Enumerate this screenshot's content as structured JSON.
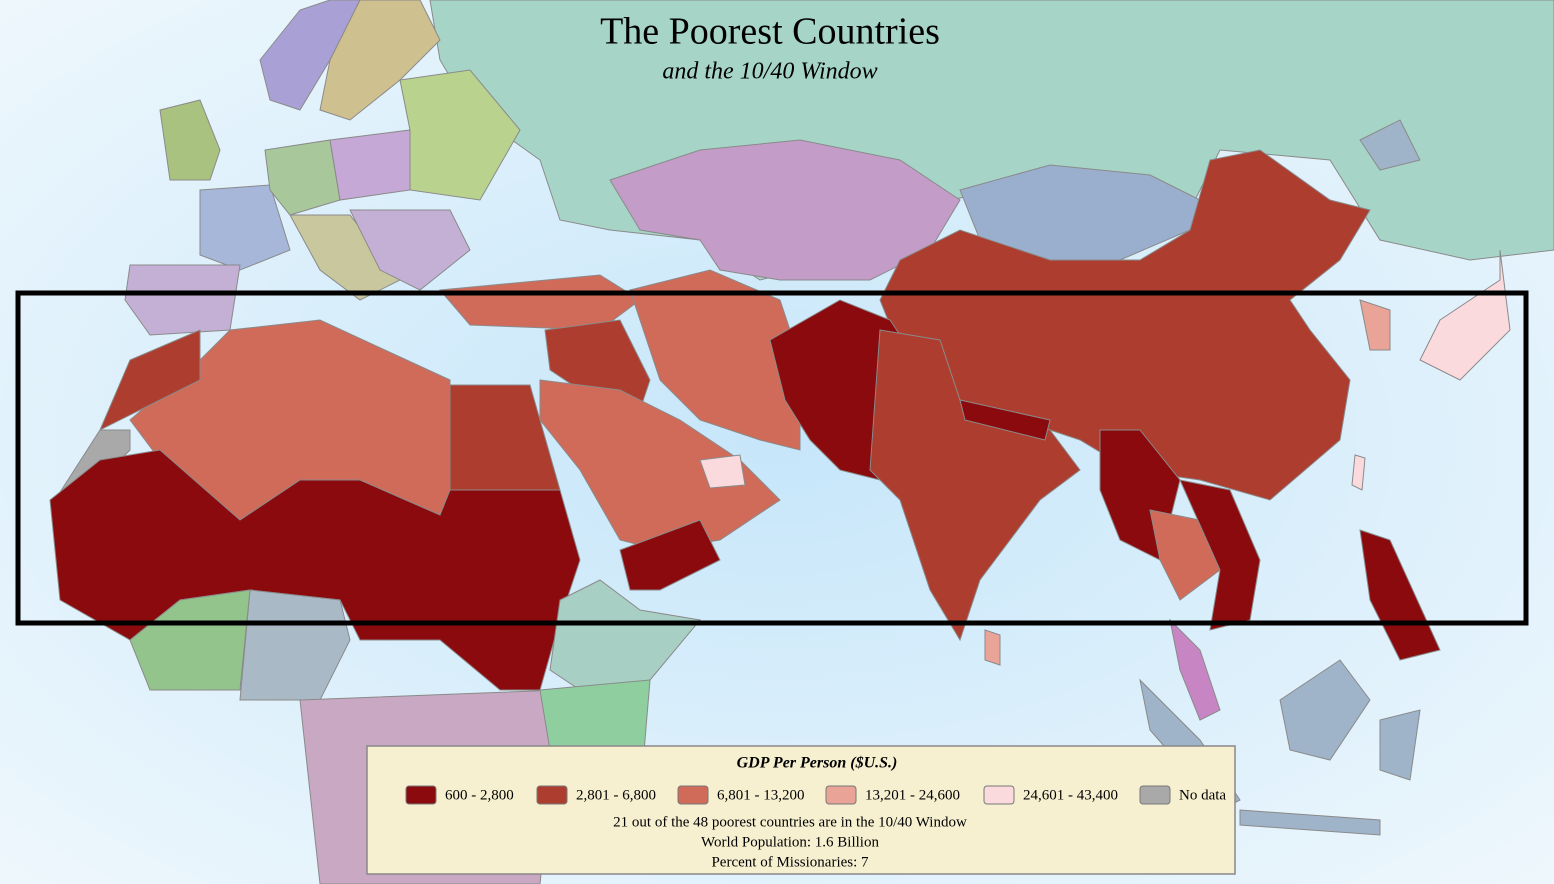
{
  "title": "The Poorest Countries",
  "subtitle": "and the 10/40 Window",
  "legend": {
    "title": "GDP Per Person ($U.S.)",
    "items": [
      {
        "label": "600 - 2,800",
        "color": "#8b0a0d"
      },
      {
        "label": "2,801 - 6,800",
        "color": "#ad3d2e"
      },
      {
        "label": "6,801 - 13,200",
        "color": "#d06b5a"
      },
      {
        "label": "13,201 - 24,600",
        "color": "#e9a497"
      },
      {
        "label": "24,601 - 43,400",
        "color": "#fadadd"
      },
      {
        "label": "No data",
        "color": "#a9a9a9"
      }
    ]
  },
  "notes": [
    "21 out of the 48 poorest countries are in the 10/40 Window",
    "World Population:  1.6 Billion",
    "Percent of Missionaries:  7"
  ]
}
